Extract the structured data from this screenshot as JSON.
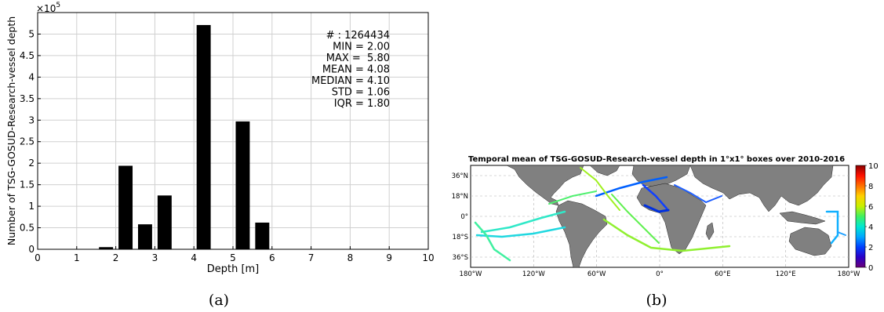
{
  "chart_data": [
    {
      "type": "bar",
      "panel_label": "(a)",
      "title": "",
      "xlabel": "Depth [m]",
      "ylabel": "Number of TSG-GOSUD-Research-vessel depth",
      "y_exponent_label": "×10",
      "y_exponent_power": "5",
      "xlim": [
        0,
        10
      ],
      "ylim": [
        0,
        5.5
      ],
      "xticks": [
        "0",
        "1",
        "2",
        "3",
        "4",
        "5",
        "6",
        "7",
        "8",
        "9",
        "10"
      ],
      "yticks": [
        "0",
        "0.5",
        "1",
        "1.5",
        "2",
        "2.5",
        "3",
        "3.5",
        "4",
        "4.5",
        "5"
      ],
      "bar_width": 0.36,
      "bars": [
        {
          "x": 1.75,
          "value": 0.05
        },
        {
          "x": 2.25,
          "value": 1.94
        },
        {
          "x": 2.75,
          "value": 0.58
        },
        {
          "x": 3.25,
          "value": 1.25
        },
        {
          "x": 4.25,
          "value": 5.21
        },
        {
          "x": 5.25,
          "value": 2.97
        },
        {
          "x": 5.75,
          "value": 0.62
        }
      ],
      "stats": [
        "# : 1264434",
        "MIN = 2.00",
        "MAX =  5.80",
        "MEAN = 4.08",
        "MEDIAN = 4.10",
        "STD = 1.06",
        "IQR = 1.80"
      ],
      "grid": true,
      "bar_color": "#000000"
    },
    {
      "type": "heatmap",
      "panel_label": "(b)",
      "title": "Temporal mean of TSG-GOSUD-Research-vessel depth in 1°x1° boxes over 2010-2016",
      "xticks": [
        "180°W",
        "120°W",
        "60°W",
        "0°",
        "60°E",
        "120°E",
        "180°W"
      ],
      "yticks": [
        "36°N",
        "18°N",
        "0°",
        "18°S",
        "36°S"
      ],
      "colorbar_ticks": [
        "0",
        "2",
        "4",
        "6",
        "8",
        "10"
      ],
      "colorbar_range": [
        0,
        10
      ],
      "colormap": [
        "#6a0078",
        "#2a00c8",
        "#0040ff",
        "#00a8ff",
        "#00e8d0",
        "#40f060",
        "#c8f000",
        "#ffd000",
        "#ff7000",
        "#ff1000",
        "#8a0000"
      ],
      "land_color": "#808080",
      "ocean_color": "#ffffff"
    }
  ]
}
